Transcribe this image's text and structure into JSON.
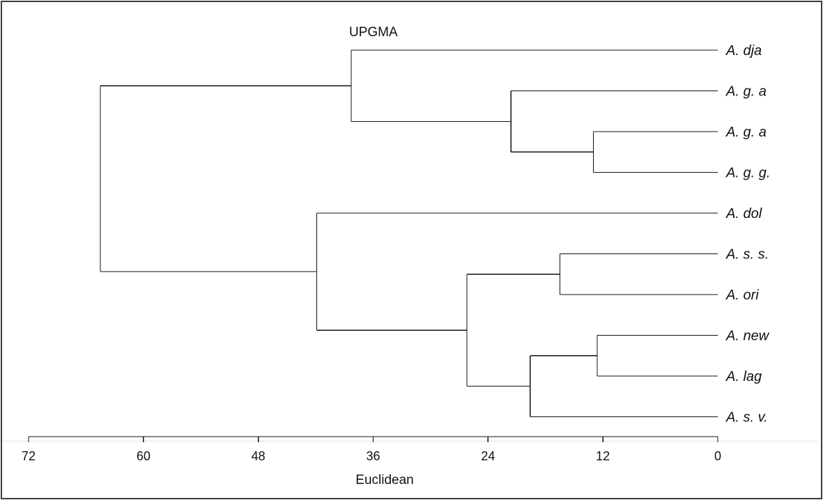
{
  "figure": {
    "title": "UPGMA",
    "axis_label": "Euclidean",
    "ticks": [
      "72",
      "60",
      "48",
      "36",
      "24",
      "12",
      "0"
    ]
  },
  "chart_data": {
    "type": "dendrogram",
    "method": "UPGMA",
    "metric": "Euclidean",
    "xlim": [
      72,
      0
    ],
    "leaves": [
      "A. dja",
      "A. g. a",
      "A. g. a",
      "A. g. g.",
      "A. dol",
      "A. s. s.",
      "A. ori",
      "A. new",
      "A. lag",
      "A. s. v."
    ],
    "merges": [
      {
        "id": "n1",
        "children": [
          "leaf2",
          "leaf3"
        ],
        "height": 13.0
      },
      {
        "id": "n2",
        "children": [
          "leaf1",
          "n1"
        ],
        "height": 21.6
      },
      {
        "id": "n3",
        "children": [
          "leaf0",
          "n2"
        ],
        "height": 38.3
      },
      {
        "id": "n4",
        "children": [
          "leaf5",
          "leaf6"
        ],
        "height": 16.5
      },
      {
        "id": "n5",
        "children": [
          "leaf7",
          "leaf8"
        ],
        "height": 12.6
      },
      {
        "id": "n6",
        "children": [
          "n5",
          "leaf9"
        ],
        "height": 19.6
      },
      {
        "id": "n7",
        "children": [
          "n4",
          "n6"
        ],
        "height": 26.2
      },
      {
        "id": "n8",
        "children": [
          "leaf4",
          "n7"
        ],
        "height": 41.9
      },
      {
        "id": "n9",
        "children": [
          "n3",
          "n8"
        ],
        "height": 64.5
      }
    ]
  }
}
